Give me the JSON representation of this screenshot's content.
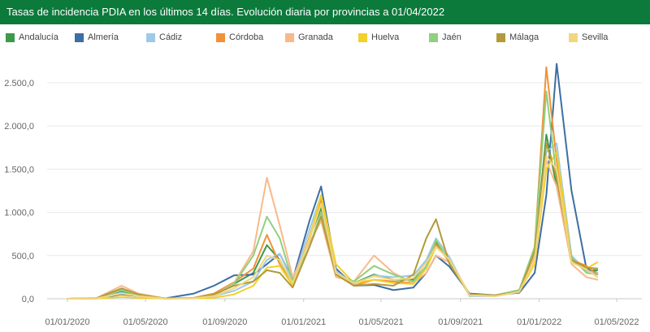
{
  "header": {
    "title": "Tasas de incidencia PDIA en los últimos 14 días. Evolución diaria por provincias a 01/04/2022"
  },
  "chart_data": {
    "type": "line",
    "title": "Tasas de incidencia PDIA en los últimos 14 días. Evolución diaria por provincias a 01/04/2022",
    "xlabel": "",
    "ylabel": "",
    "x_ticks": [
      "01/01/2020",
      "01/05/2020",
      "01/09/2020",
      "01/01/2021",
      "01/05/2021",
      "01/09/2021",
      "01/01/2022",
      "01/05/2022"
    ],
    "y_ticks": [
      "0,0",
      "500,0",
      "1.000,0",
      "1.500,0",
      "2.000,0",
      "2.500,0"
    ],
    "ylim": [
      0,
      2800
    ],
    "grid": "horizontal",
    "legend_position": "top",
    "x": [
      "2020-01-01",
      "2020-02-15",
      "2020-03-25",
      "2020-04-20",
      "2020-06-01",
      "2020-07-15",
      "2020-08-15",
      "2020-09-15",
      "2020-10-15",
      "2020-11-05",
      "2020-11-25",
      "2020-12-15",
      "2021-01-10",
      "2021-01-28",
      "2021-02-20",
      "2021-03-20",
      "2021-04-20",
      "2021-05-20",
      "2021-06-20",
      "2021-07-10",
      "2021-07-25",
      "2021-08-15",
      "2021-09-15",
      "2021-10-25",
      "2021-12-01",
      "2021-12-25",
      "2022-01-12",
      "2022-01-28",
      "2022-02-20",
      "2022-03-15",
      "2022-04-01"
    ],
    "series": [
      {
        "name": "Andalucía",
        "color": "#3c9a4a",
        "values": [
          0,
          5,
          80,
          40,
          3,
          10,
          40,
          170,
          300,
          620,
          450,
          160,
          700,
          1050,
          300,
          180,
          280,
          220,
          220,
          430,
          650,
          420,
          40,
          40,
          90,
          550,
          1900,
          1300,
          450,
          330,
          330
        ]
      },
      {
        "name": "Almería",
        "color": "#3d6ea4",
        "values": [
          0,
          3,
          50,
          30,
          5,
          60,
          150,
          270,
          280,
          400,
          520,
          220,
          900,
          1300,
          350,
          150,
          160,
          100,
          130,
          300,
          500,
          370,
          60,
          40,
          70,
          300,
          1200,
          2720,
          1250,
          350,
          300
        ]
      },
      {
        "name": "Cádiz",
        "color": "#9ecae9",
        "values": [
          0,
          5,
          70,
          30,
          3,
          5,
          30,
          90,
          200,
          450,
          520,
          200,
          800,
          1200,
          320,
          170,
          270,
          250,
          270,
          450,
          700,
          480,
          30,
          30,
          80,
          500,
          1700,
          1800,
          500,
          320,
          300
        ]
      },
      {
        "name": "Córdoba",
        "color": "#f0923a",
        "values": [
          0,
          5,
          100,
          50,
          3,
          10,
          60,
          190,
          350,
          740,
          400,
          150,
          720,
          1150,
          280,
          150,
          220,
          200,
          180,
          380,
          630,
          430,
          40,
          40,
          100,
          600,
          2680,
          1600,
          450,
          380,
          280
        ]
      },
      {
        "name": "Granada",
        "color": "#f8b98a",
        "values": [
          0,
          8,
          150,
          60,
          3,
          10,
          40,
          180,
          550,
          1400,
          850,
          250,
          650,
          900,
          250,
          200,
          500,
          300,
          180,
          300,
          500,
          420,
          50,
          40,
          90,
          500,
          1600,
          1300,
          400,
          250,
          220
        ]
      },
      {
        "name": "Huelva",
        "color": "#f2d12a",
        "values": [
          0,
          2,
          20,
          10,
          2,
          5,
          10,
          50,
          150,
          360,
          380,
          150,
          700,
          1200,
          400,
          180,
          220,
          180,
          170,
          350,
          600,
          450,
          50,
          30,
          80,
          400,
          1500,
          1700,
          450,
          350,
          420
        ]
      },
      {
        "name": "Jaén",
        "color": "#90d07f",
        "values": [
          0,
          5,
          100,
          40,
          3,
          8,
          40,
          170,
          500,
          950,
          700,
          200,
          600,
          1000,
          280,
          200,
          380,
          280,
          200,
          380,
          680,
          430,
          50,
          40,
          100,
          600,
          2400,
          1400,
          480,
          300,
          280
        ]
      },
      {
        "name": "Málaga",
        "color": "#b39a3a",
        "values": [
          0,
          6,
          120,
          50,
          3,
          10,
          50,
          150,
          200,
          330,
          300,
          130,
          600,
          950,
          280,
          150,
          170,
          150,
          280,
          700,
          920,
          400,
          50,
          40,
          80,
          550,
          1800,
          1400,
          450,
          360,
          350
        ]
      },
      {
        "name": "Sevilla",
        "color": "#f2d680",
        "values": [
          0,
          4,
          60,
          30,
          3,
          8,
          30,
          120,
          250,
          500,
          450,
          180,
          680,
          1100,
          300,
          180,
          260,
          220,
          240,
          420,
          600,
          450,
          40,
          30,
          80,
          450,
          1650,
          1500,
          420,
          340,
          250
        ]
      }
    ]
  }
}
